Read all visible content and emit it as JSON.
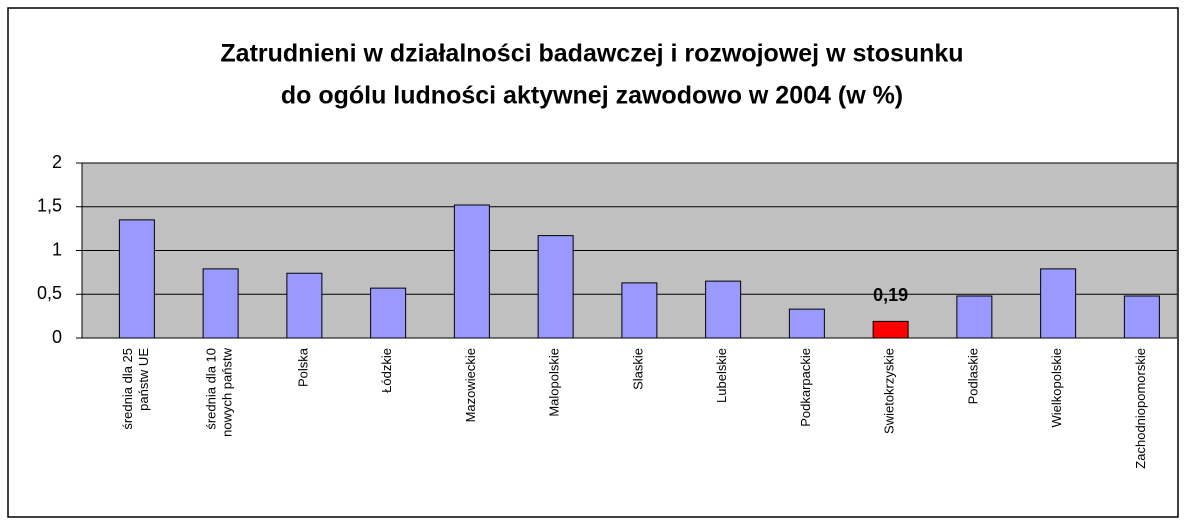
{
  "chart_data": {
    "type": "bar",
    "title": [
      "Zatrudnieni w działalności badawczej i rozwojowej w stosunku",
      "do ogólu ludności aktywnej zawodowo w 2004 (w %)"
    ],
    "categories": [
      "średnia dla 25\npaństw UE",
      "średnia dla 10\nnowych państw",
      "Polska",
      "Łódzkie",
      "Mazowieckie",
      "Malopolskie",
      "Slaskie",
      "Lubelskie",
      "Podkarpackie",
      "Swietokrzyskie",
      "Podlaskie",
      "Wielkopolskie",
      "Zachodniopomorskie"
    ],
    "values": [
      1.35,
      0.79,
      0.74,
      0.57,
      1.52,
      1.17,
      0.63,
      0.65,
      0.33,
      0.19,
      0.48,
      0.79,
      0.48
    ],
    "value_labels": [
      null,
      null,
      null,
      null,
      null,
      null,
      null,
      null,
      null,
      "0,19",
      null,
      null,
      null
    ],
    "colors": [
      "#9999ff",
      "#9999ff",
      "#9999ff",
      "#9999ff",
      "#9999ff",
      "#9999ff",
      "#9999ff",
      "#9999ff",
      "#9999ff",
      "#ff0000",
      "#9999ff",
      "#9999ff",
      "#9999ff"
    ],
    "ylim": [
      0,
      2
    ],
    "yticks": [
      0,
      {
        "value": 0.5,
        "label": "0,5"
      },
      1,
      {
        "value": 1.5,
        "label": "1,5"
      },
      2
    ],
    "grid": true
  }
}
